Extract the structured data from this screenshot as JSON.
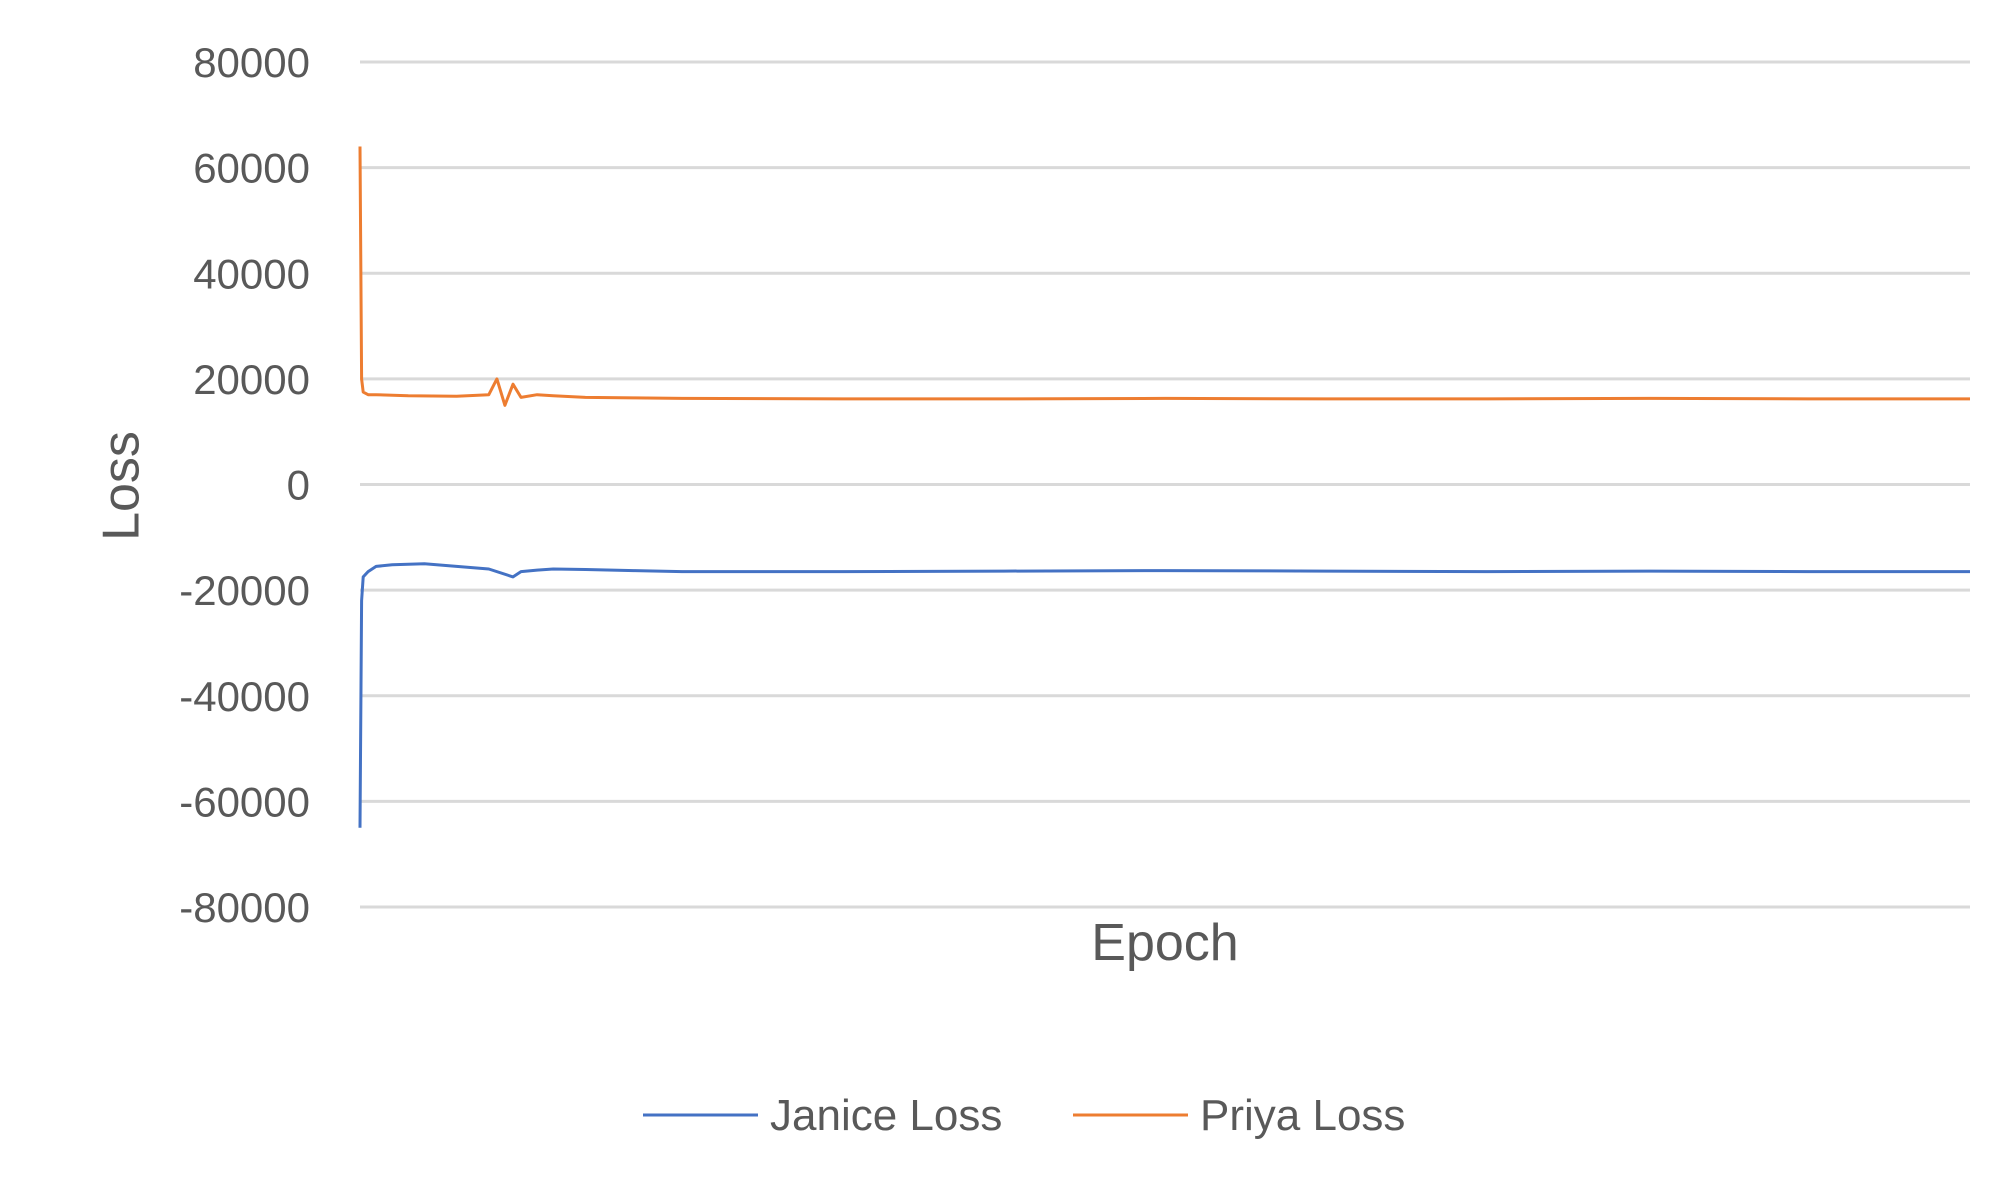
{
  "chart_data": {
    "type": "line",
    "title": "",
    "xlabel": "Epoch",
    "ylabel": "Loss",
    "ylim": [
      -80000,
      80000
    ],
    "yticks": [
      "80000",
      "60000",
      "40000",
      "20000",
      "0",
      "-20000",
      "-40000",
      "-60000",
      "-80000"
    ],
    "grid": "horizontal",
    "legend_position": "bottom",
    "x_tick_labels_shown": false,
    "series": [
      {
        "name": "Janice Loss",
        "color": "#4472c4",
        "x": [
          0,
          1,
          2,
          5,
          10,
          20,
          40,
          60,
          80,
          95,
          100,
          110,
          120,
          140,
          170,
          200,
          300,
          400,
          500,
          600,
          700,
          800,
          900,
          1000
        ],
        "values": [
          -65000,
          -22000,
          -17500,
          -16500,
          -15500,
          -15200,
          -15000,
          -15500,
          -16000,
          -17500,
          -16500,
          -16200,
          -16000,
          -16100,
          -16300,
          -16500,
          -16500,
          -16400,
          -16300,
          -16400,
          -16500,
          -16400,
          -16500,
          -16500
        ]
      },
      {
        "name": "Priya Loss",
        "color": "#ed7d31",
        "x": [
          0,
          1,
          2,
          5,
          10,
          30,
          60,
          80,
          85,
          90,
          95,
          100,
          110,
          120,
          140,
          170,
          200,
          300,
          400,
          500,
          600,
          700,
          800,
          900,
          1000
        ],
        "values": [
          64000,
          20000,
          17500,
          17000,
          17000,
          16800,
          16700,
          17000,
          20000,
          15000,
          19000,
          16500,
          17000,
          16800,
          16500,
          16400,
          16300,
          16200,
          16200,
          16300,
          16200,
          16200,
          16300,
          16200,
          16200
        ]
      }
    ]
  }
}
